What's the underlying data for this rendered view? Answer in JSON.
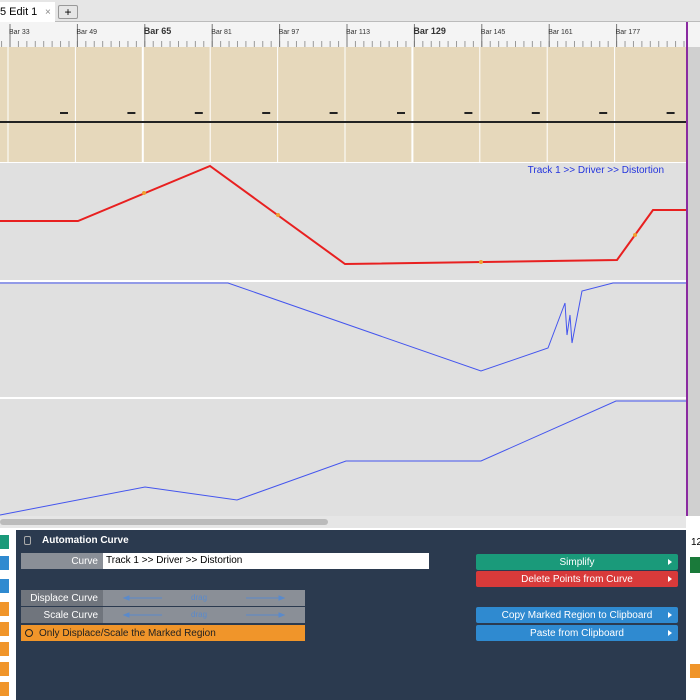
{
  "tab": {
    "title": "5 Edit 1",
    "close": "×",
    "add": "+"
  },
  "ruler": {
    "bars": [
      "Bar 33",
      "Bar 49",
      "Bar 65",
      "Bar 81",
      "Bar 97",
      "Bar 113",
      "Bar 129",
      "Bar 145",
      "Bar 161",
      "Bar 177"
    ]
  },
  "lane": {
    "label": "Track 1 >> Driver >> Distortion"
  },
  "panel": {
    "title": "Automation Curve",
    "curve_label": "Curve",
    "curve_value": "Track 1 >> Driver >> Distortion",
    "displace": "Displace Curve",
    "displace_drag": "drag",
    "scale": "Scale Curve",
    "scale_drag": "drag",
    "marked_only": "Only Displace/Scale the Marked Region",
    "buttons": [
      "Simplify",
      "Delete Points from Curve",
      "Copy Marked Region to Clipboard",
      "Paste from Clipboard"
    ]
  },
  "side": {
    "number": "12"
  }
}
